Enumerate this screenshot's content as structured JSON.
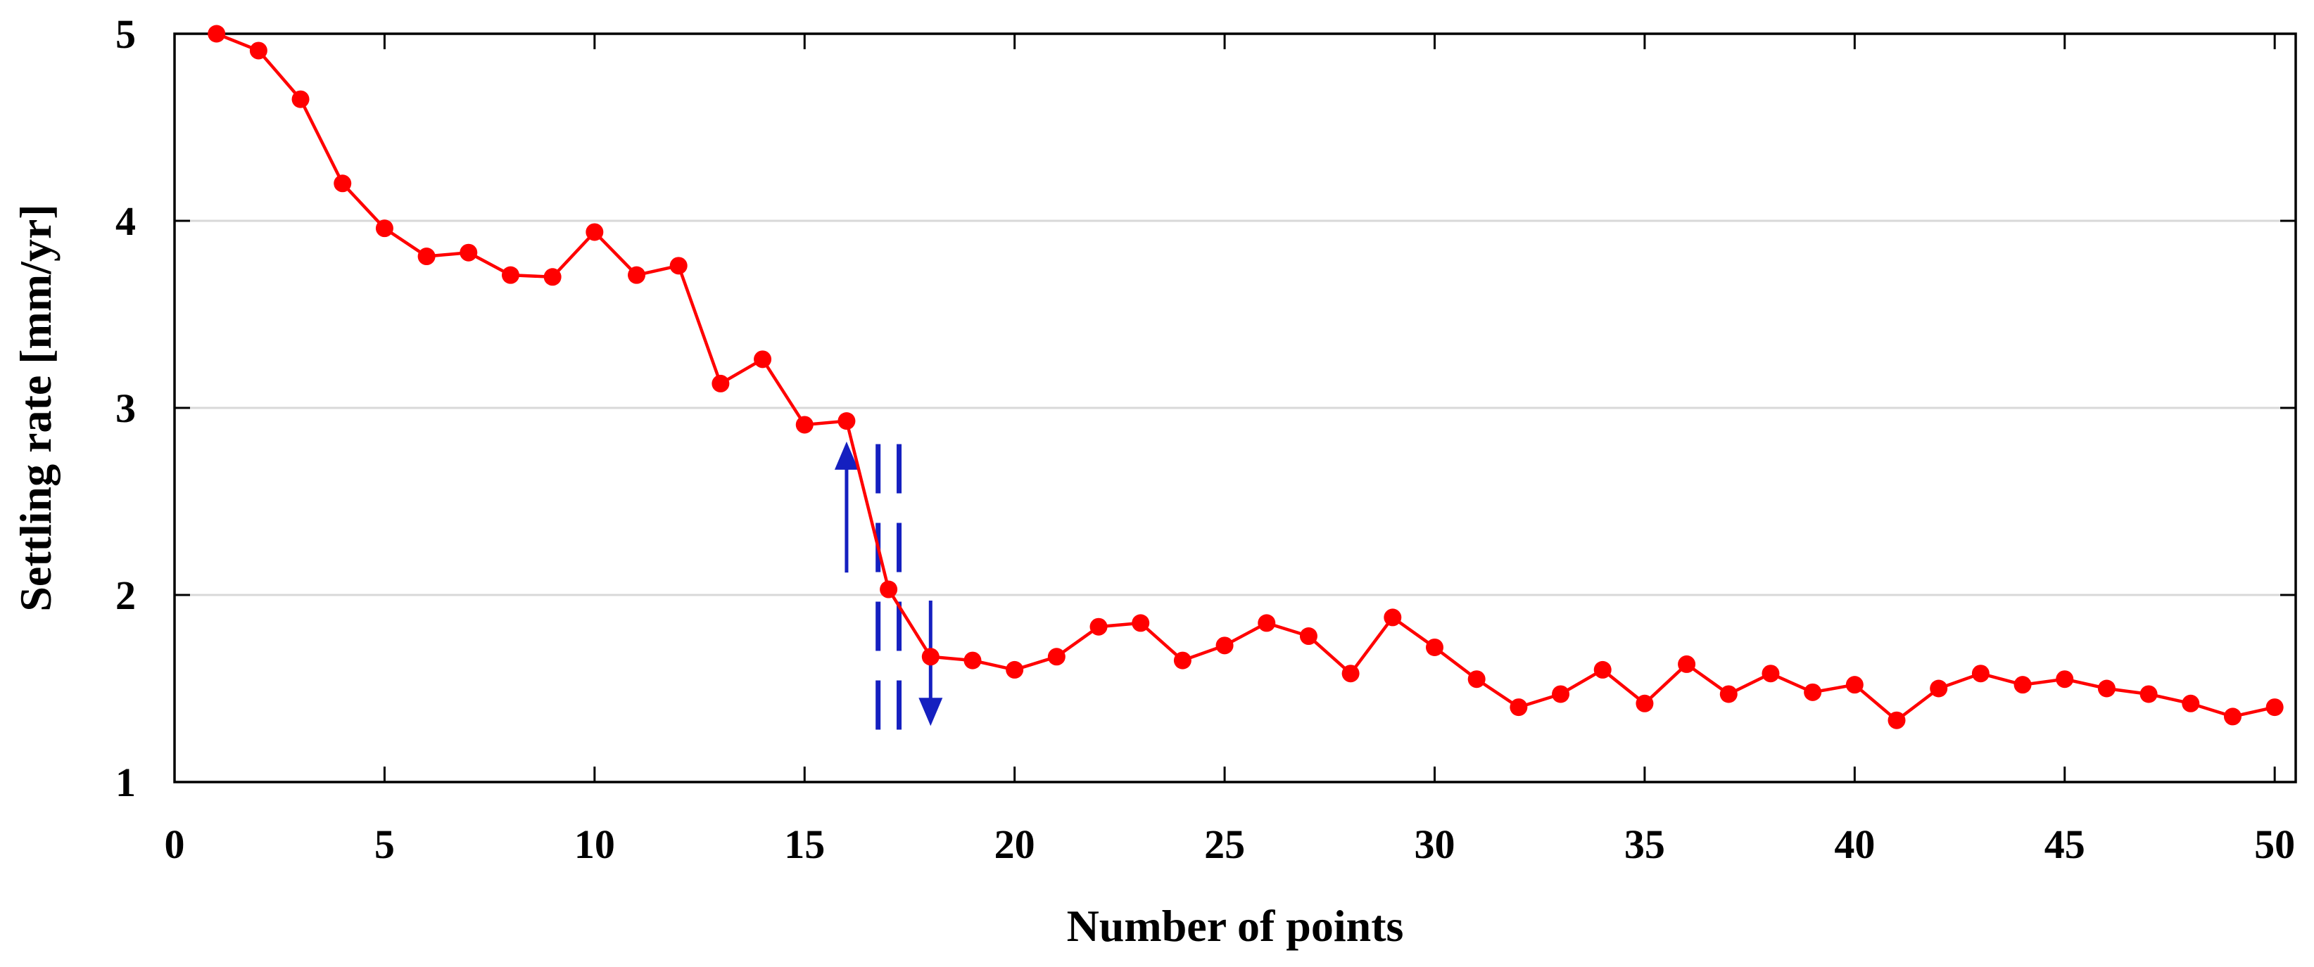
{
  "chart_data": {
    "type": "line",
    "title": "",
    "xlabel": "Number of points",
    "ylabel": "Settling rate [mm/yr]",
    "xlim": [
      0,
      50.5
    ],
    "ylim": [
      1,
      5
    ],
    "xticks": [
      0,
      5,
      10,
      15,
      20,
      25,
      30,
      35,
      40,
      45,
      50
    ],
    "yticks": [
      1,
      2,
      3,
      4,
      5
    ],
    "grid": "horizontal",
    "legend": "none",
    "series": [
      {
        "color": "#ff0000",
        "marker": "circle",
        "x": [
          1,
          2,
          3,
          4,
          5,
          6,
          7,
          8,
          9,
          10,
          11,
          12,
          13,
          14,
          15,
          16,
          17,
          18,
          19,
          20,
          21,
          22,
          23,
          24,
          25,
          26,
          27,
          28,
          29,
          30,
          31,
          32,
          33,
          34,
          35,
          36,
          37,
          38,
          39,
          40,
          41,
          42,
          43,
          44,
          45,
          46,
          47,
          48,
          49,
          50
        ],
        "values": [
          5.0,
          4.91,
          4.65,
          4.2,
          3.96,
          3.81,
          3.83,
          3.71,
          3.7,
          3.94,
          3.71,
          3.76,
          3.13,
          3.26,
          2.91,
          2.93,
          2.03,
          1.67,
          1.65,
          1.6,
          1.67,
          1.83,
          1.85,
          1.65,
          1.73,
          1.85,
          1.78,
          1.58,
          1.88,
          1.72,
          1.55,
          1.4,
          1.47,
          1.6,
          1.42,
          1.63,
          1.47,
          1.58,
          1.48,
          1.52,
          1.33,
          1.5,
          1.58,
          1.52,
          1.55,
          1.5,
          1.47,
          1.42,
          1.35,
          1.4
        ]
      }
    ],
    "annotations": {
      "color": "#1520c0",
      "dashed_lines_x": [
        16.75,
        17.25
      ],
      "dashed_lines_y": [
        1.28,
        2.82
      ],
      "arrow_up": {
        "x": 16.0,
        "from": 2.12,
        "to": 2.82
      },
      "arrow_down": {
        "x": 18.0,
        "from": 1.97,
        "to": 1.3
      }
    }
  }
}
